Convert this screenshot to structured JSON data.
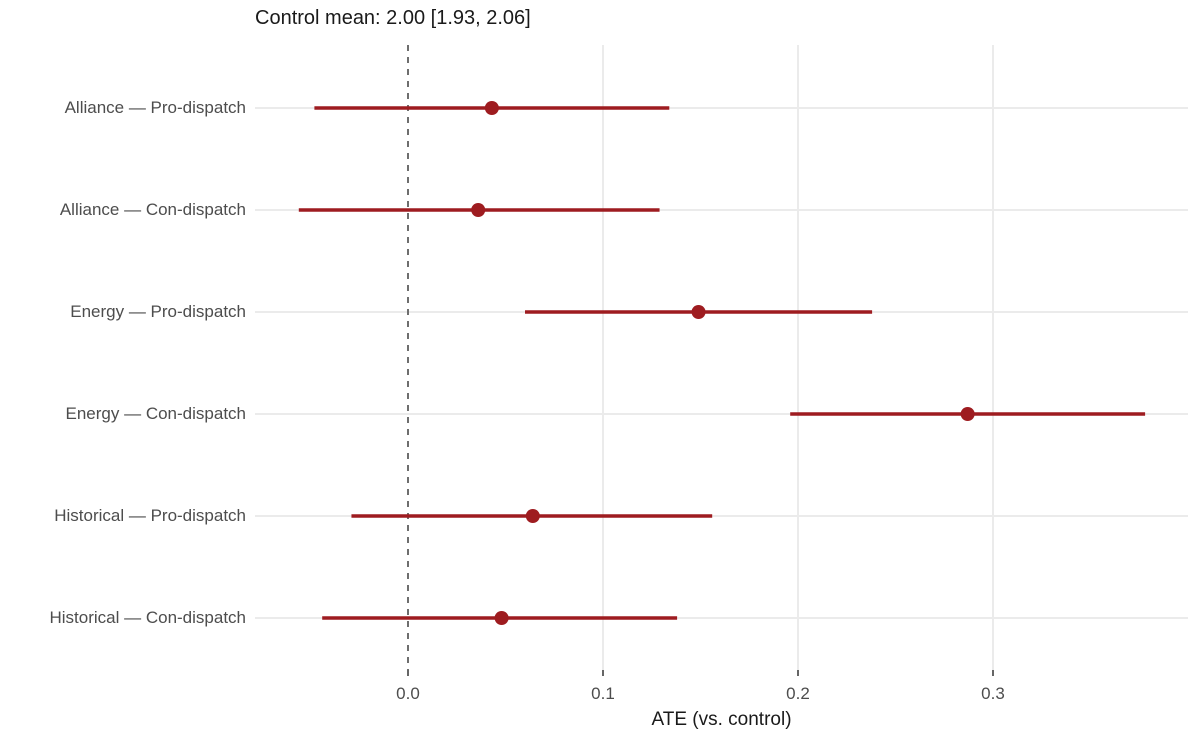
{
  "colors": {
    "background": "#ffffff",
    "point": "#9e1c20",
    "interval": "#9e1c20",
    "gridline": "#ebebeb",
    "zero_line": "#6e6e6e",
    "tick_mark": "#333333",
    "axis_text": "#4d4d4d",
    "title_text": "#1a1a1a"
  },
  "chart_data": {
    "type": "scatter",
    "subtype": "forest-dot-interval",
    "orientation": "horizontal",
    "title": "Control mean: 2.00 [1.93, 2.06]",
    "xlabel": "ATE (vs. control)",
    "ylabel": "",
    "xlim": [
      -0.079,
      0.401
    ],
    "x_ticks": [
      "0.0",
      "0.1",
      "0.2",
      "0.3"
    ],
    "x_tick_values": [
      0.0,
      0.1,
      0.2,
      0.3
    ],
    "reference_line_x": 0.0,
    "grid": "light vertical lines at x ticks, light horizontal line per row, dashed reference at 0",
    "legend": "none",
    "rows": [
      {
        "label": "Alliance — Pro-dispatch",
        "estimate": 0.043,
        "ci_low": -0.048,
        "ci_high": 0.134
      },
      {
        "label": "Alliance — Con-dispatch",
        "estimate": 0.036,
        "ci_low": -0.056,
        "ci_high": 0.129
      },
      {
        "label": "Energy — Pro-dispatch",
        "estimate": 0.149,
        "ci_low": 0.06,
        "ci_high": 0.238
      },
      {
        "label": "Energy — Con-dispatch",
        "estimate": 0.287,
        "ci_low": 0.196,
        "ci_high": 0.378
      },
      {
        "label": "Historical — Pro-dispatch",
        "estimate": 0.064,
        "ci_low": -0.029,
        "ci_high": 0.156
      },
      {
        "label": "Historical — Con-dispatch",
        "estimate": 0.048,
        "ci_low": -0.044,
        "ci_high": 0.138
      }
    ]
  }
}
